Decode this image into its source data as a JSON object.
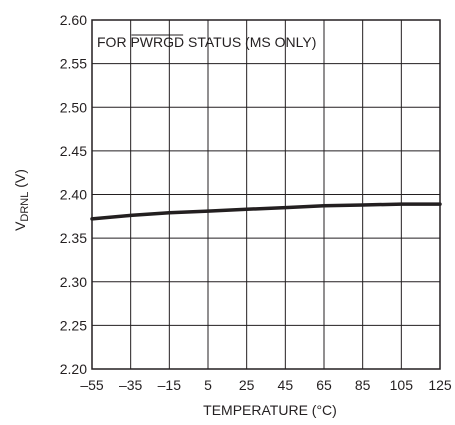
{
  "chart_data": {
    "type": "line",
    "title": "",
    "annotation": {
      "prefix": "FOR ",
      "overlined": "PWRGD",
      "suffix": " STATUS (MS ONLY)"
    },
    "xlabel": "TEMPERATURE (°C)",
    "ylabel": {
      "base": "V",
      "subscript": "DRNL",
      "unit": " (V)"
    },
    "x_ticks": [
      -55,
      -35,
      -15,
      5,
      25,
      45,
      65,
      85,
      105,
      125
    ],
    "x_tick_labels": [
      "–55",
      "–35",
      "–15",
      "5",
      "25",
      "45",
      "65",
      "85",
      "105",
      "125"
    ],
    "y_ticks": [
      2.2,
      2.25,
      2.3,
      2.35,
      2.4,
      2.45,
      2.5,
      2.55,
      2.6
    ],
    "y_tick_labels": [
      "2.20",
      "2.25",
      "2.30",
      "2.35",
      "2.40",
      "2.45",
      "2.50",
      "2.55",
      "2.60"
    ],
    "xlim": [
      -55,
      125
    ],
    "ylim": [
      2.2,
      2.6
    ],
    "grid": true,
    "series": [
      {
        "x": [
          -55,
          -35,
          -15,
          5,
          25,
          45,
          65,
          85,
          105,
          125
        ],
        "values": [
          2.372,
          2.376,
          2.379,
          2.381,
          2.383,
          2.385,
          2.387,
          2.388,
          2.389,
          2.389
        ]
      }
    ],
    "colors": {
      "ink": "#231f20"
    }
  }
}
